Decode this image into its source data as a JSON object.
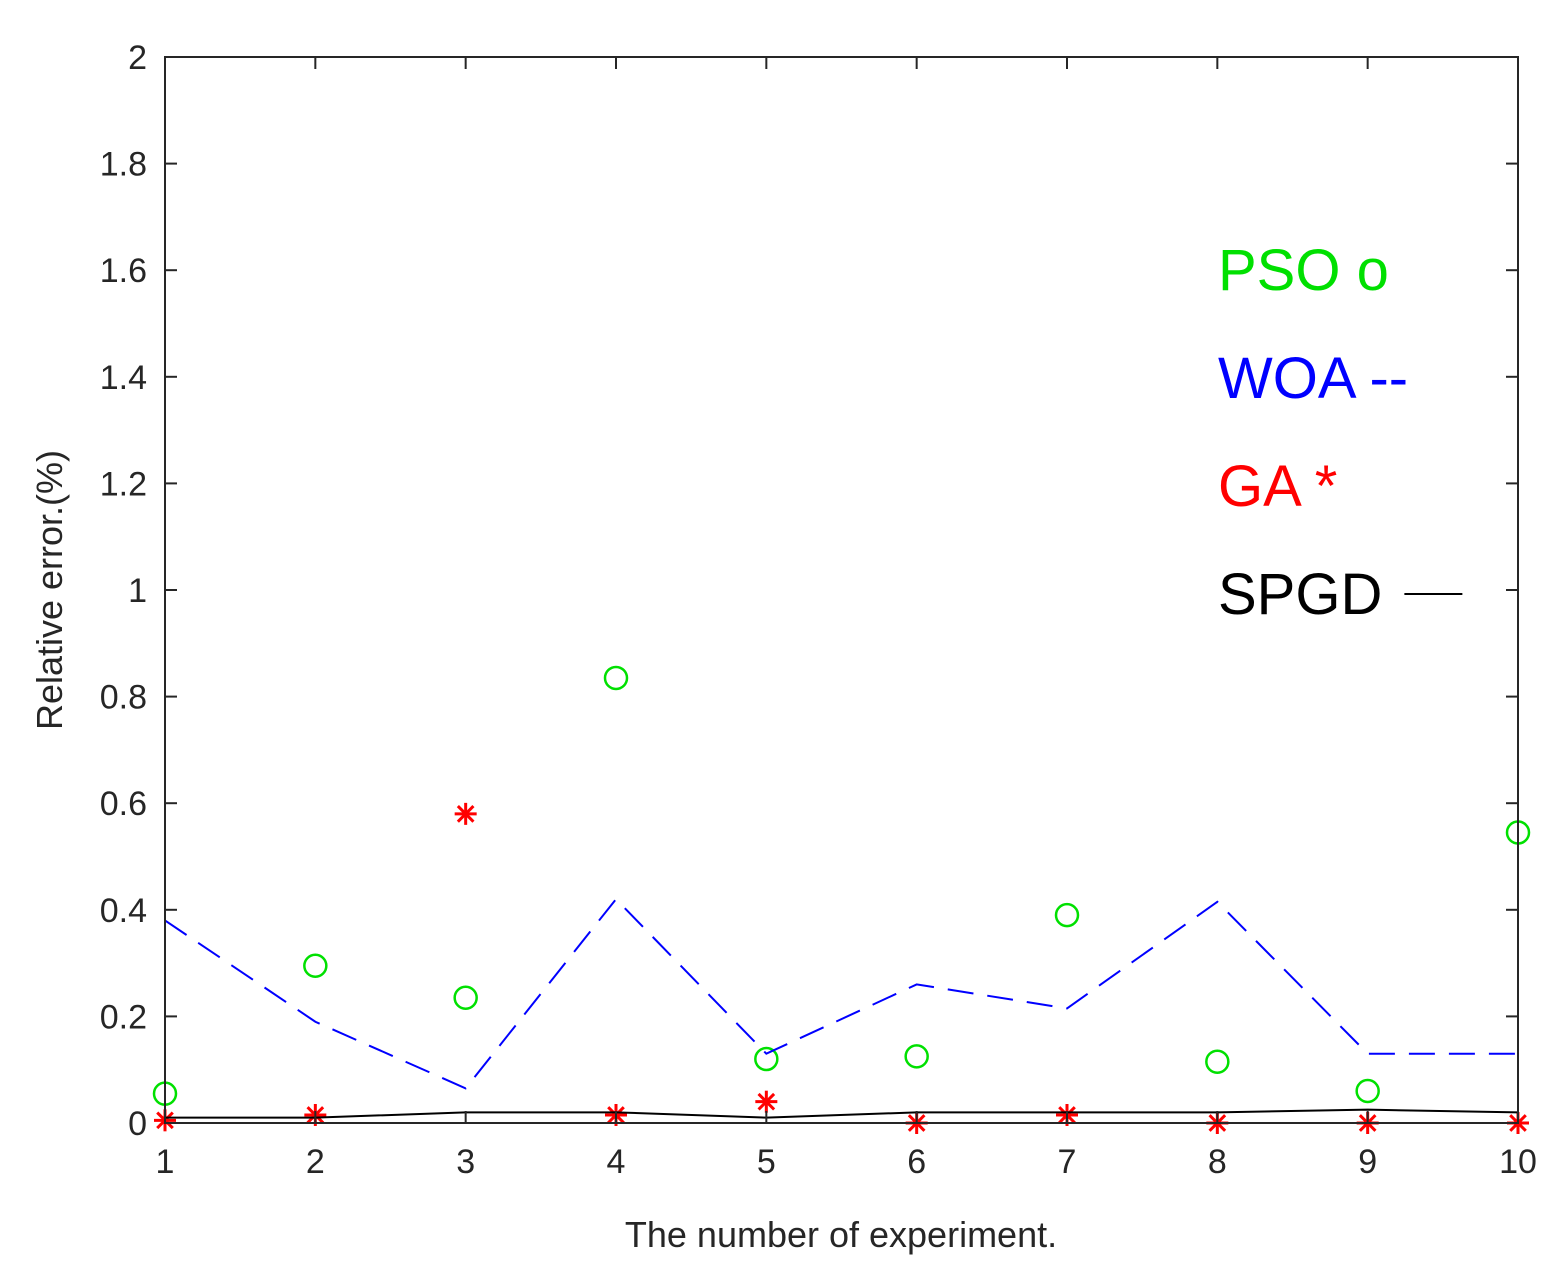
{
  "chart_data": {
    "type": "line",
    "title": "",
    "xlabel": "The number of experiment.",
    "ylabel": "Relative error.(%)",
    "x": [
      1,
      2,
      3,
      4,
      5,
      6,
      7,
      8,
      9,
      10
    ],
    "xticks": [
      "1",
      "2",
      "3",
      "4",
      "5",
      "6",
      "7",
      "8",
      "9",
      "10"
    ],
    "yticks": [
      "0",
      "0.2",
      "0.4",
      "0.6",
      "0.8",
      "1",
      "1.2",
      "1.4",
      "1.6",
      "1.8",
      "2"
    ],
    "xlim": [
      1,
      10
    ],
    "ylim": [
      0,
      2
    ],
    "grid": false,
    "legend_position": "right",
    "series": [
      {
        "name": "PSO",
        "legend_label": "PSO o",
        "marker": "circle",
        "line": "none",
        "color": "#00e000",
        "values": [
          0.055,
          0.295,
          0.235,
          0.835,
          0.12,
          0.125,
          0.39,
          0.115,
          0.06,
          0.545
        ]
      },
      {
        "name": "WOA",
        "legend_label": "WOA --",
        "marker": "none",
        "line": "dashed",
        "color": "#0000ff",
        "values": [
          0.38,
          0.19,
          0.065,
          0.42,
          0.13,
          0.26,
          0.215,
          0.415,
          0.13,
          0.13
        ]
      },
      {
        "name": "GA",
        "legend_label": "GA *",
        "marker": "asterisk",
        "line": "none",
        "color": "#ff0000",
        "values": [
          0.005,
          0.015,
          0.58,
          0.015,
          0.04,
          0.0,
          0.015,
          0.0,
          0.0,
          0.0
        ]
      },
      {
        "name": "SPGD",
        "legend_label": "SPGD",
        "marker": "none",
        "line": "solid",
        "color": "#000000",
        "values": [
          0.01,
          0.01,
          0.02,
          0.02,
          0.01,
          0.02,
          0.02,
          0.02,
          0.025,
          0.02
        ]
      }
    ]
  }
}
